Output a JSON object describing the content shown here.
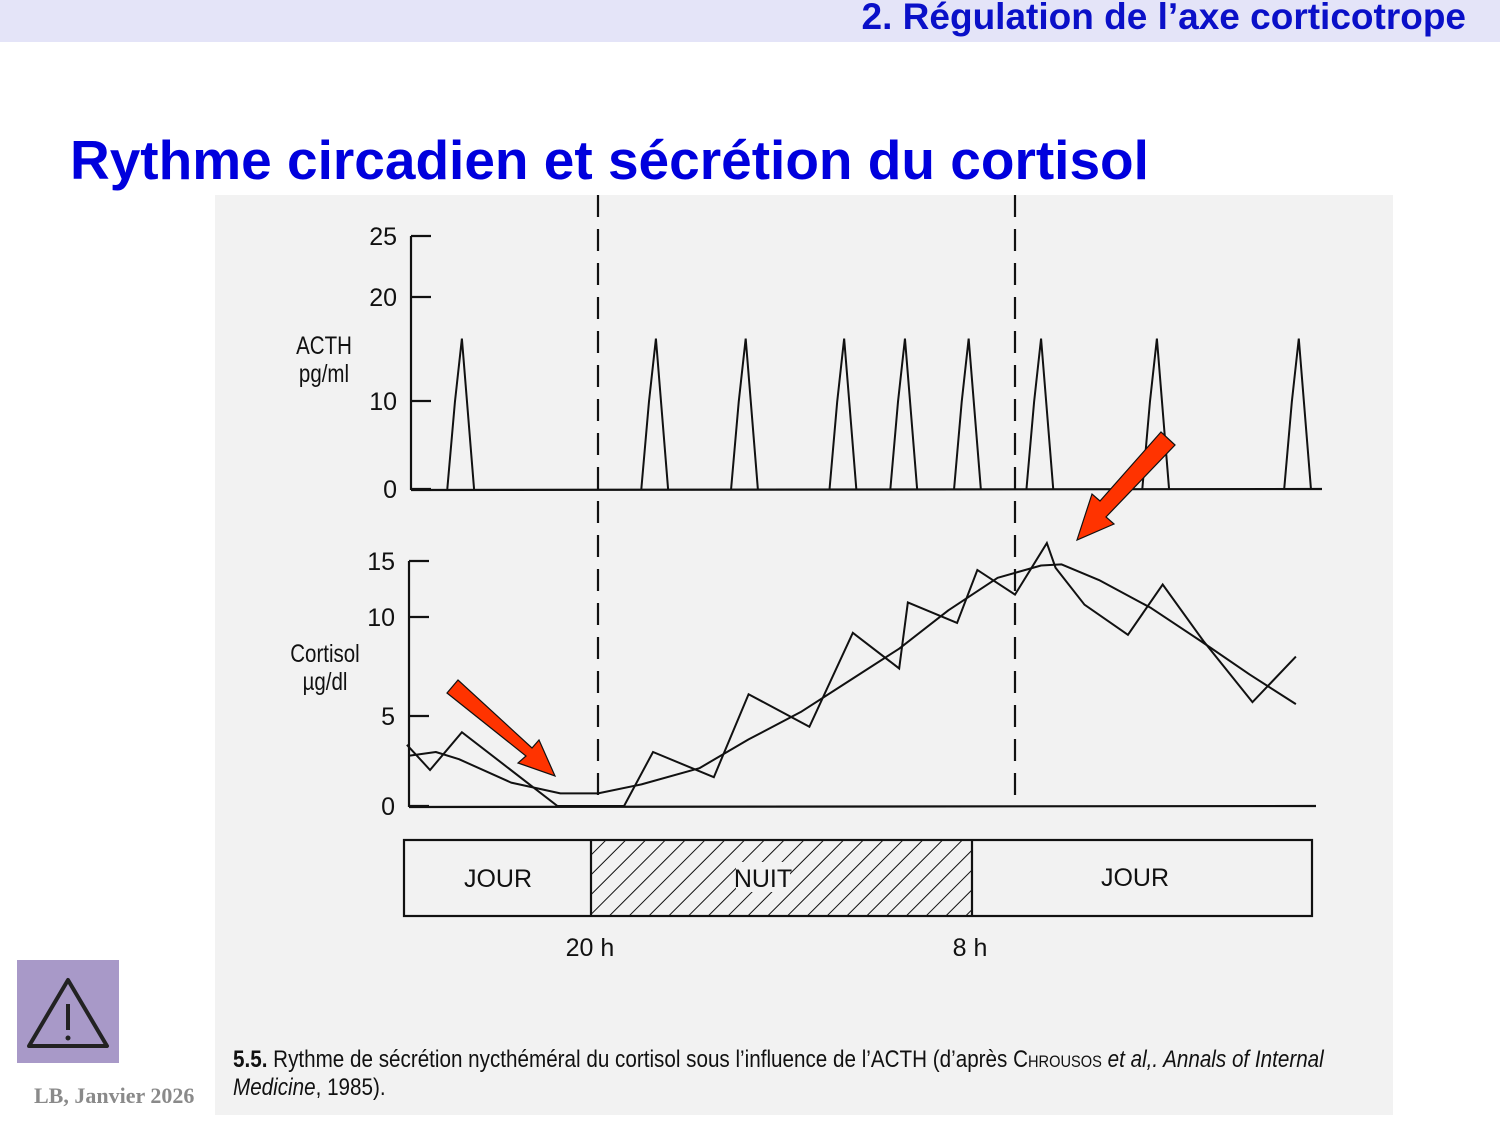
{
  "header": {
    "section_title": "2. Régulation de l’axe corticotrope"
  },
  "slide": {
    "title": "Rythme circadien et sécrétion du cortisol"
  },
  "footer": {
    "author_date": "LB, Janvier 2026",
    "warning_icon": "warning-triangle-icon",
    "warning_bg": "#a899c8"
  },
  "caption": {
    "number": "5.5.",
    "text": " Rythme de sécrétion nycthéméral du cortisol sous l’influence de l’ACTH (d’après ",
    "author": "Chrousos",
    "etal": " et al,. Annals of Internal Medicine",
    "tail": ", 1985)."
  },
  "colors": {
    "title": "#0000dd",
    "header_bg": "#e4e4f8",
    "arrow": "#ff3300",
    "figure_bg": "#f2f2f2"
  },
  "chart_data": [
    {
      "type": "line",
      "ylabel": [
        "ACTH",
        "pg/ml"
      ],
      "yticks": [
        0,
        10,
        20,
        25
      ],
      "ylim": [
        0,
        25
      ],
      "series": [
        {
          "pulse_peaks": [
            "16:05",
            "21:40",
            "00:15",
            "03:05",
            "04:50",
            "06:40",
            "08:45",
            "12:05",
            "16:10"
          ],
          "peak_value": 16
        }
      ]
    },
    {
      "type": "line",
      "ylabel": [
        "Cortisol",
        "µg/dl"
      ],
      "yticks": [
        0,
        5,
        10,
        15
      ],
      "ylim": [
        0,
        15
      ],
      "series": [
        {
          "x": [
            "14:30",
            "15:10",
            "16:05",
            "18:50",
            "20:45",
            "21:35",
            "23:20",
            "00:20",
            "02:05",
            "03:20",
            "04:40",
            "04:55",
            "06:20",
            "06:55",
            "08:00",
            "08:55",
            "09:10",
            "10:00",
            "11:15",
            "12:15",
            "13:25",
            "14:50",
            "16:05"
          ],
          "y": [
            3.4,
            2.0,
            4.1,
            0,
            0,
            3.0,
            1.6,
            6.1,
            4.4,
            9.2,
            7.4,
            11.3,
            9.7,
            14.2,
            12.0,
            16.6,
            14.4,
            11.1,
            9.1,
            12.9,
            8.8,
            5.7,
            8.0
          ]
        },
        {
          "x": [
            "14:35",
            "15:20",
            "16:00",
            "17:30",
            "18:55",
            "20:00",
            "21:15",
            "22:55",
            "00:20",
            "01:50",
            "03:15",
            "04:40",
            "06:05",
            "07:30",
            "08:45",
            "09:20",
            "10:25",
            "11:55",
            "13:20",
            "14:45",
            "16:05"
          ],
          "y": [
            2.8,
            3.0,
            2.6,
            1.3,
            0.7,
            0.7,
            1.2,
            2.1,
            3.7,
            5.2,
            6.8,
            8.4,
            10.6,
            13.5,
            14.6,
            14.7,
            13.3,
            10.8,
            8.8,
            7.1,
            5.6
          ]
        }
      ]
    }
  ],
  "time_band": {
    "segments": [
      "JOUR",
      "NUIT",
      "JOUR"
    ],
    "ticks": [
      "20 h",
      "8 h"
    ]
  },
  "annotations": [
    "arrow pointing to cortisol minimum near 20 h",
    "arrow pointing to cortisol peak after 8 h"
  ]
}
